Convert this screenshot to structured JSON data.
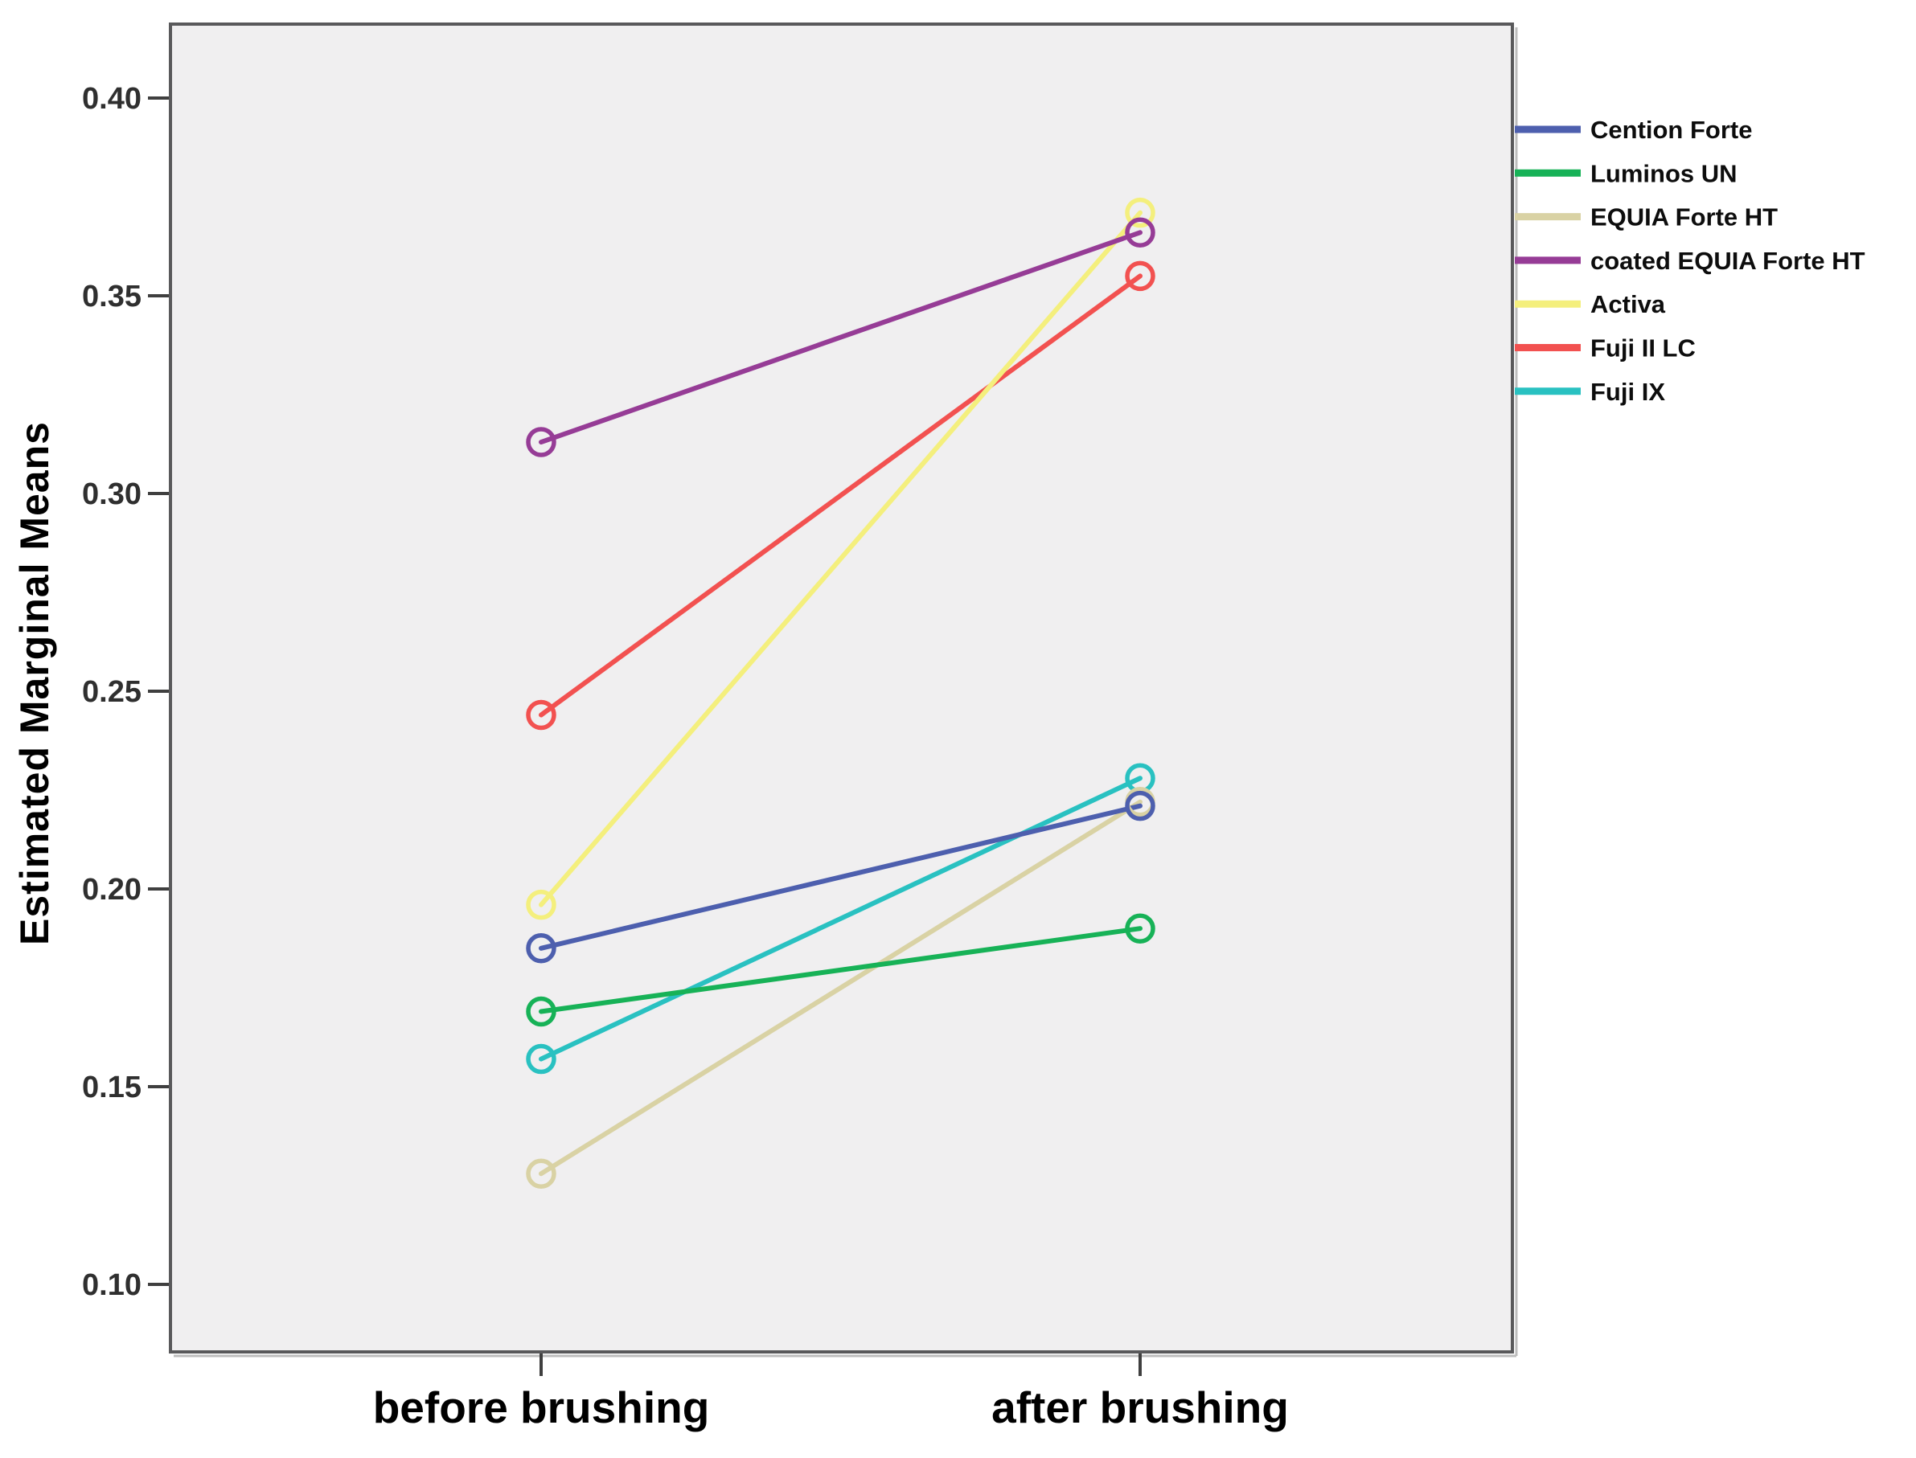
{
  "figure": {
    "kind": "profile-plot",
    "background": "#ffffff"
  },
  "style": {
    "plot_bg": "#f0eff0",
    "box_border_color": "#59595b",
    "tick_color": "#3f3f3f",
    "tick_label_color": "#2f2f2f",
    "axis_label_color": "#000000",
    "legend_text_color": "#0d0d0d",
    "line_width": 6,
    "marker_radius": 16,
    "marker_stroke": 5.5
  },
  "chart_data": {
    "type": "line",
    "title": "",
    "xlabel": "",
    "ylabel": "Estimated Marginal Means",
    "categories": [
      "before brushing",
      "after brushing"
    ],
    "y_ticks": [
      0.1,
      0.15,
      0.2,
      0.25,
      0.3,
      0.35,
      0.4
    ],
    "y_tick_decimals": 2,
    "ylim": [
      0.082,
      0.418
    ],
    "grid": false,
    "legend_position": "right",
    "series": [
      {
        "name": "Cention Forte",
        "color": "#4d5fae",
        "values": [
          0.185,
          0.221
        ]
      },
      {
        "name": "Luminos UN",
        "color": "#17b257",
        "values": [
          0.169,
          0.19
        ]
      },
      {
        "name": "EQUIA Forte HT",
        "color": "#d9d2a4",
        "values": [
          0.128,
          0.222
        ]
      },
      {
        "name": "coated EQUIA Forte HT",
        "color": "#963c96",
        "values": [
          0.313,
          0.366
        ]
      },
      {
        "name": "Activa",
        "color": "#f4ef7d",
        "values": [
          0.196,
          0.371
        ]
      },
      {
        "name": "Fuji II LC",
        "color": "#f25150",
        "values": [
          0.244,
          0.355
        ]
      },
      {
        "name": "Fuji IX",
        "color": "#29c1c1",
        "values": [
          0.157,
          0.228
        ]
      }
    ]
  }
}
